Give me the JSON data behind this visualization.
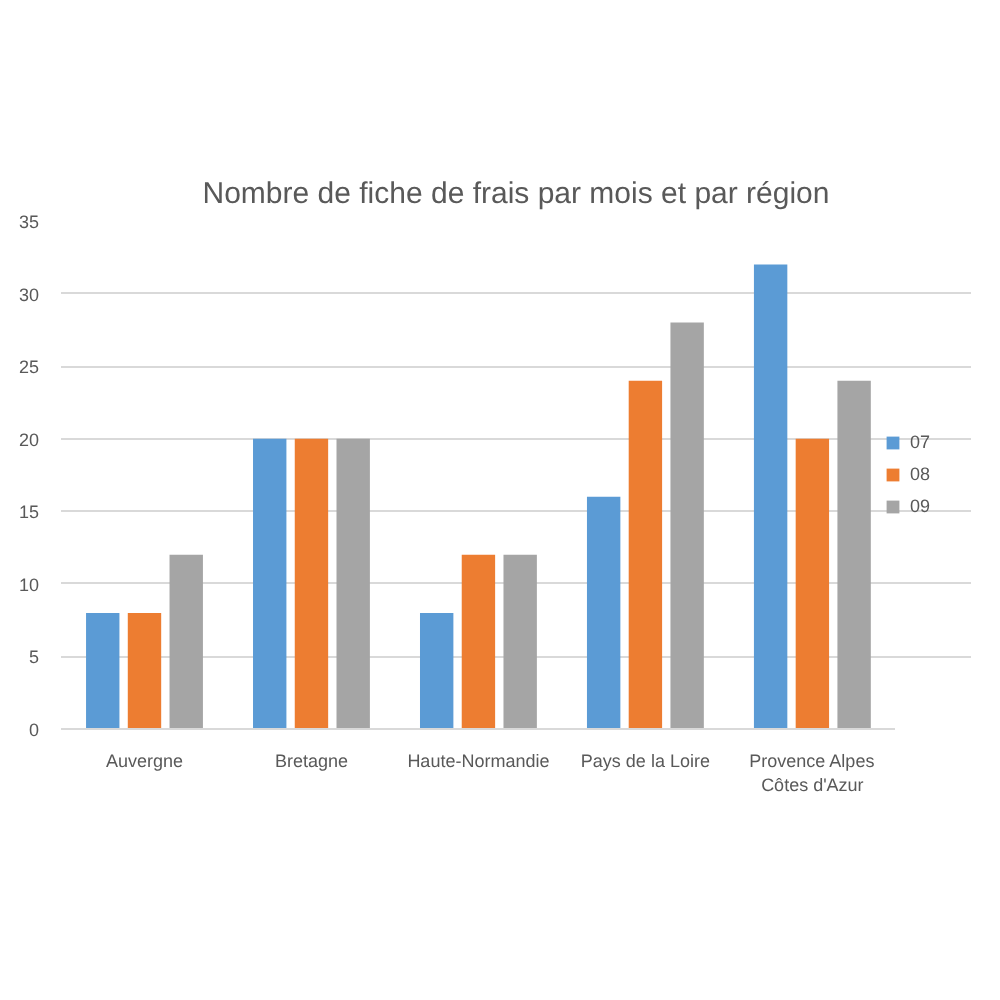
{
  "chart_data": {
    "type": "bar",
    "title": "Nombre de fiche de frais par mois et par région",
    "categories": [
      "Auvergne",
      "Bretagne",
      "Haute-Normandie",
      "Pays de la Loire",
      "Provence Alpes\nCôtes d'Azur"
    ],
    "series": [
      {
        "name": "07",
        "color": "#5b9bd5",
        "values": [
          8,
          20,
          8,
          16,
          32
        ]
      },
      {
        "name": "08",
        "color": "#ed7d31",
        "values": [
          8,
          20,
          12,
          24,
          20
        ]
      },
      {
        "name": "09",
        "color": "#a5a5a5",
        "values": [
          12,
          20,
          12,
          28,
          24
        ]
      }
    ],
    "ylim": [
      0,
      35
    ],
    "yticks": [
      0,
      5,
      10,
      15,
      20,
      25,
      30,
      35
    ],
    "grid": "y",
    "legend": "right"
  }
}
